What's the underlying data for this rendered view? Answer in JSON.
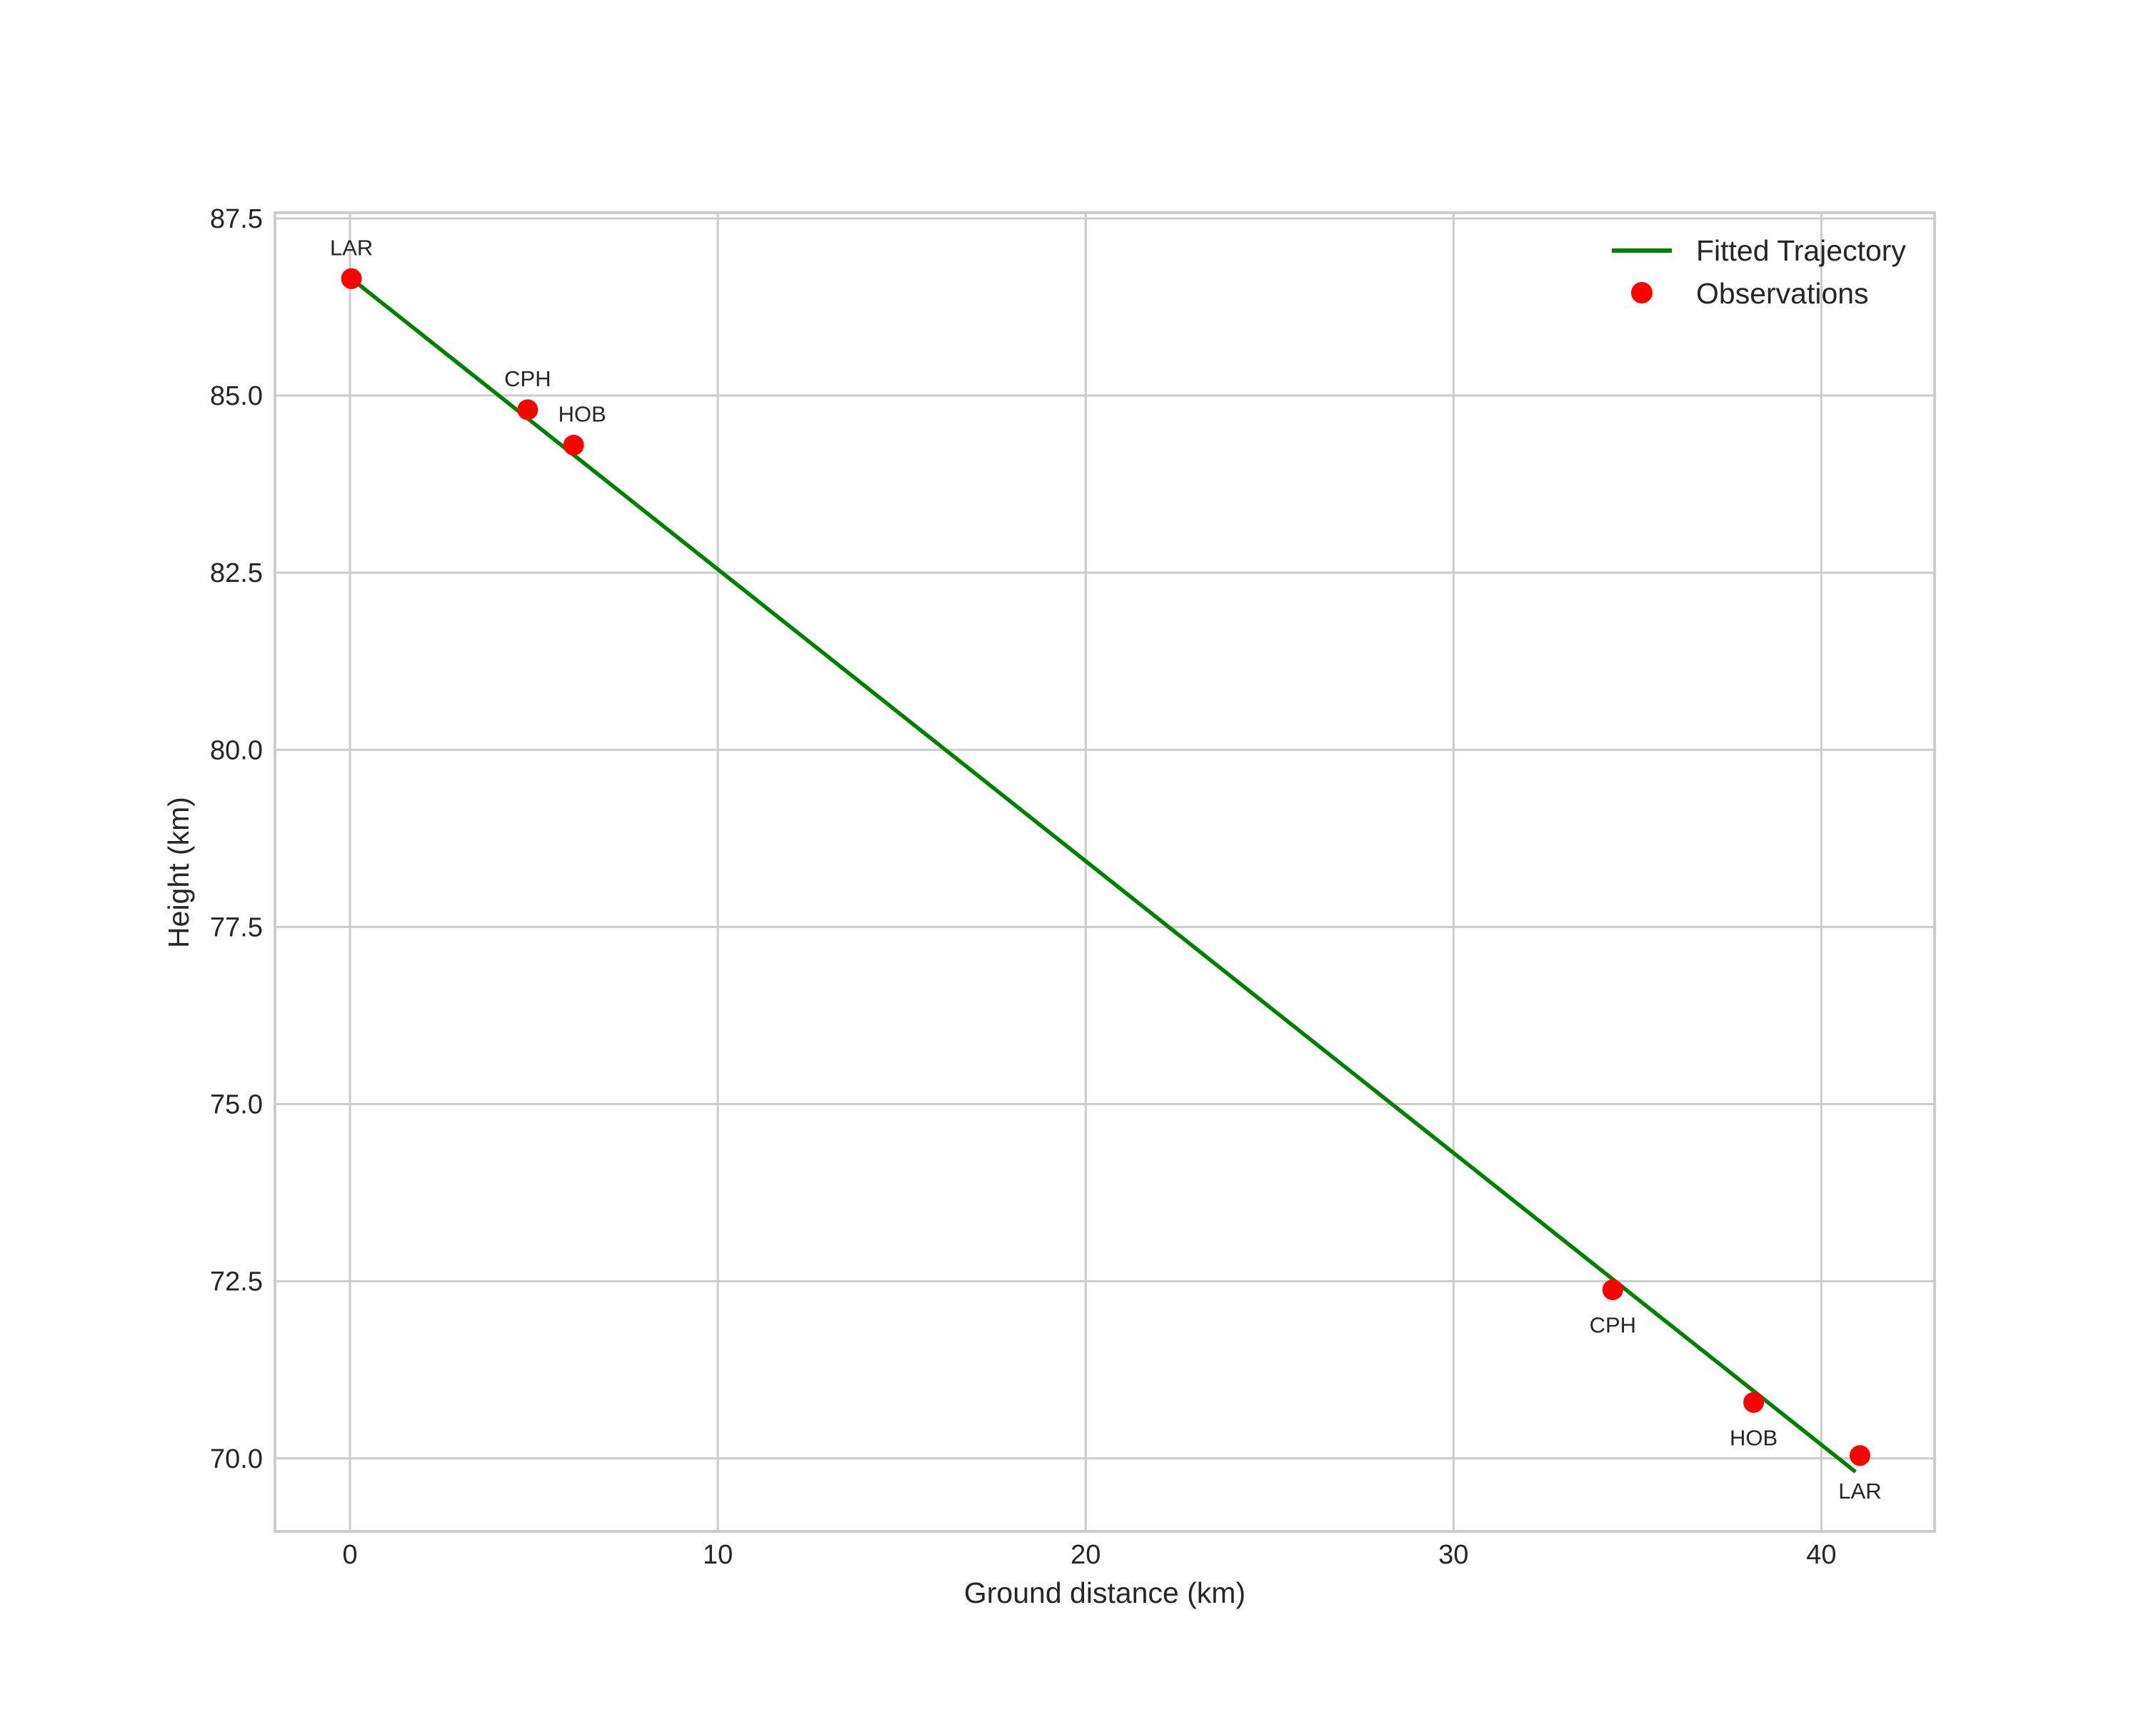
{
  "chart_data": {
    "type": "line+scatter",
    "title": "",
    "xlabel": "Ground distance (km)",
    "ylabel": "Height (km)",
    "xlim": [
      -2.04,
      43.08
    ],
    "ylim": [
      68.97,
      87.58
    ],
    "xticks": [
      0,
      10,
      20,
      30,
      40
    ],
    "xtick_labels": [
      "0",
      "10",
      "20",
      "30",
      "40"
    ],
    "yticks": [
      70.0,
      72.5,
      75.0,
      77.5,
      80.0,
      82.5,
      85.0,
      87.5
    ],
    "ytick_labels": [
      "70.0",
      "72.5",
      "75.0",
      "77.5",
      "80.0",
      "82.5",
      "85.0",
      "87.5"
    ],
    "grid": true,
    "legend_position": "upper right",
    "series": [
      {
        "name": "Fitted Trajectory",
        "type": "line",
        "color": "#008000",
        "x": [
          0.04,
          40.93
        ],
        "y": [
          86.65,
          69.81
        ]
      },
      {
        "name": "Observations",
        "type": "scatter",
        "color": "#ff0000",
        "points": [
          {
            "label": "LAR",
            "x": 0.04,
            "y": 86.65,
            "label_pos": "above"
          },
          {
            "label": "CPH",
            "x": 4.83,
            "y": 84.8,
            "label_pos": "above"
          },
          {
            "label": "HOB",
            "x": 6.08,
            "y": 84.3,
            "label_pos": "above"
          },
          {
            "label": "CPH",
            "x": 34.33,
            "y": 72.38,
            "label_pos": "below"
          },
          {
            "label": "HOB",
            "x": 38.16,
            "y": 70.79,
            "label_pos": "below"
          },
          {
            "label": "LAR",
            "x": 41.05,
            "y": 70.04,
            "label_pos": "below"
          }
        ]
      }
    ]
  },
  "legend": {
    "items": [
      {
        "label": "Fitted Trajectory",
        "marker": "line",
        "color": "#008000"
      },
      {
        "label": "Observations",
        "marker": "dot",
        "color": "#ff0000"
      }
    ]
  },
  "colors": {
    "grid": "#cccccc",
    "text": "#262626",
    "background": "#ffffff"
  }
}
